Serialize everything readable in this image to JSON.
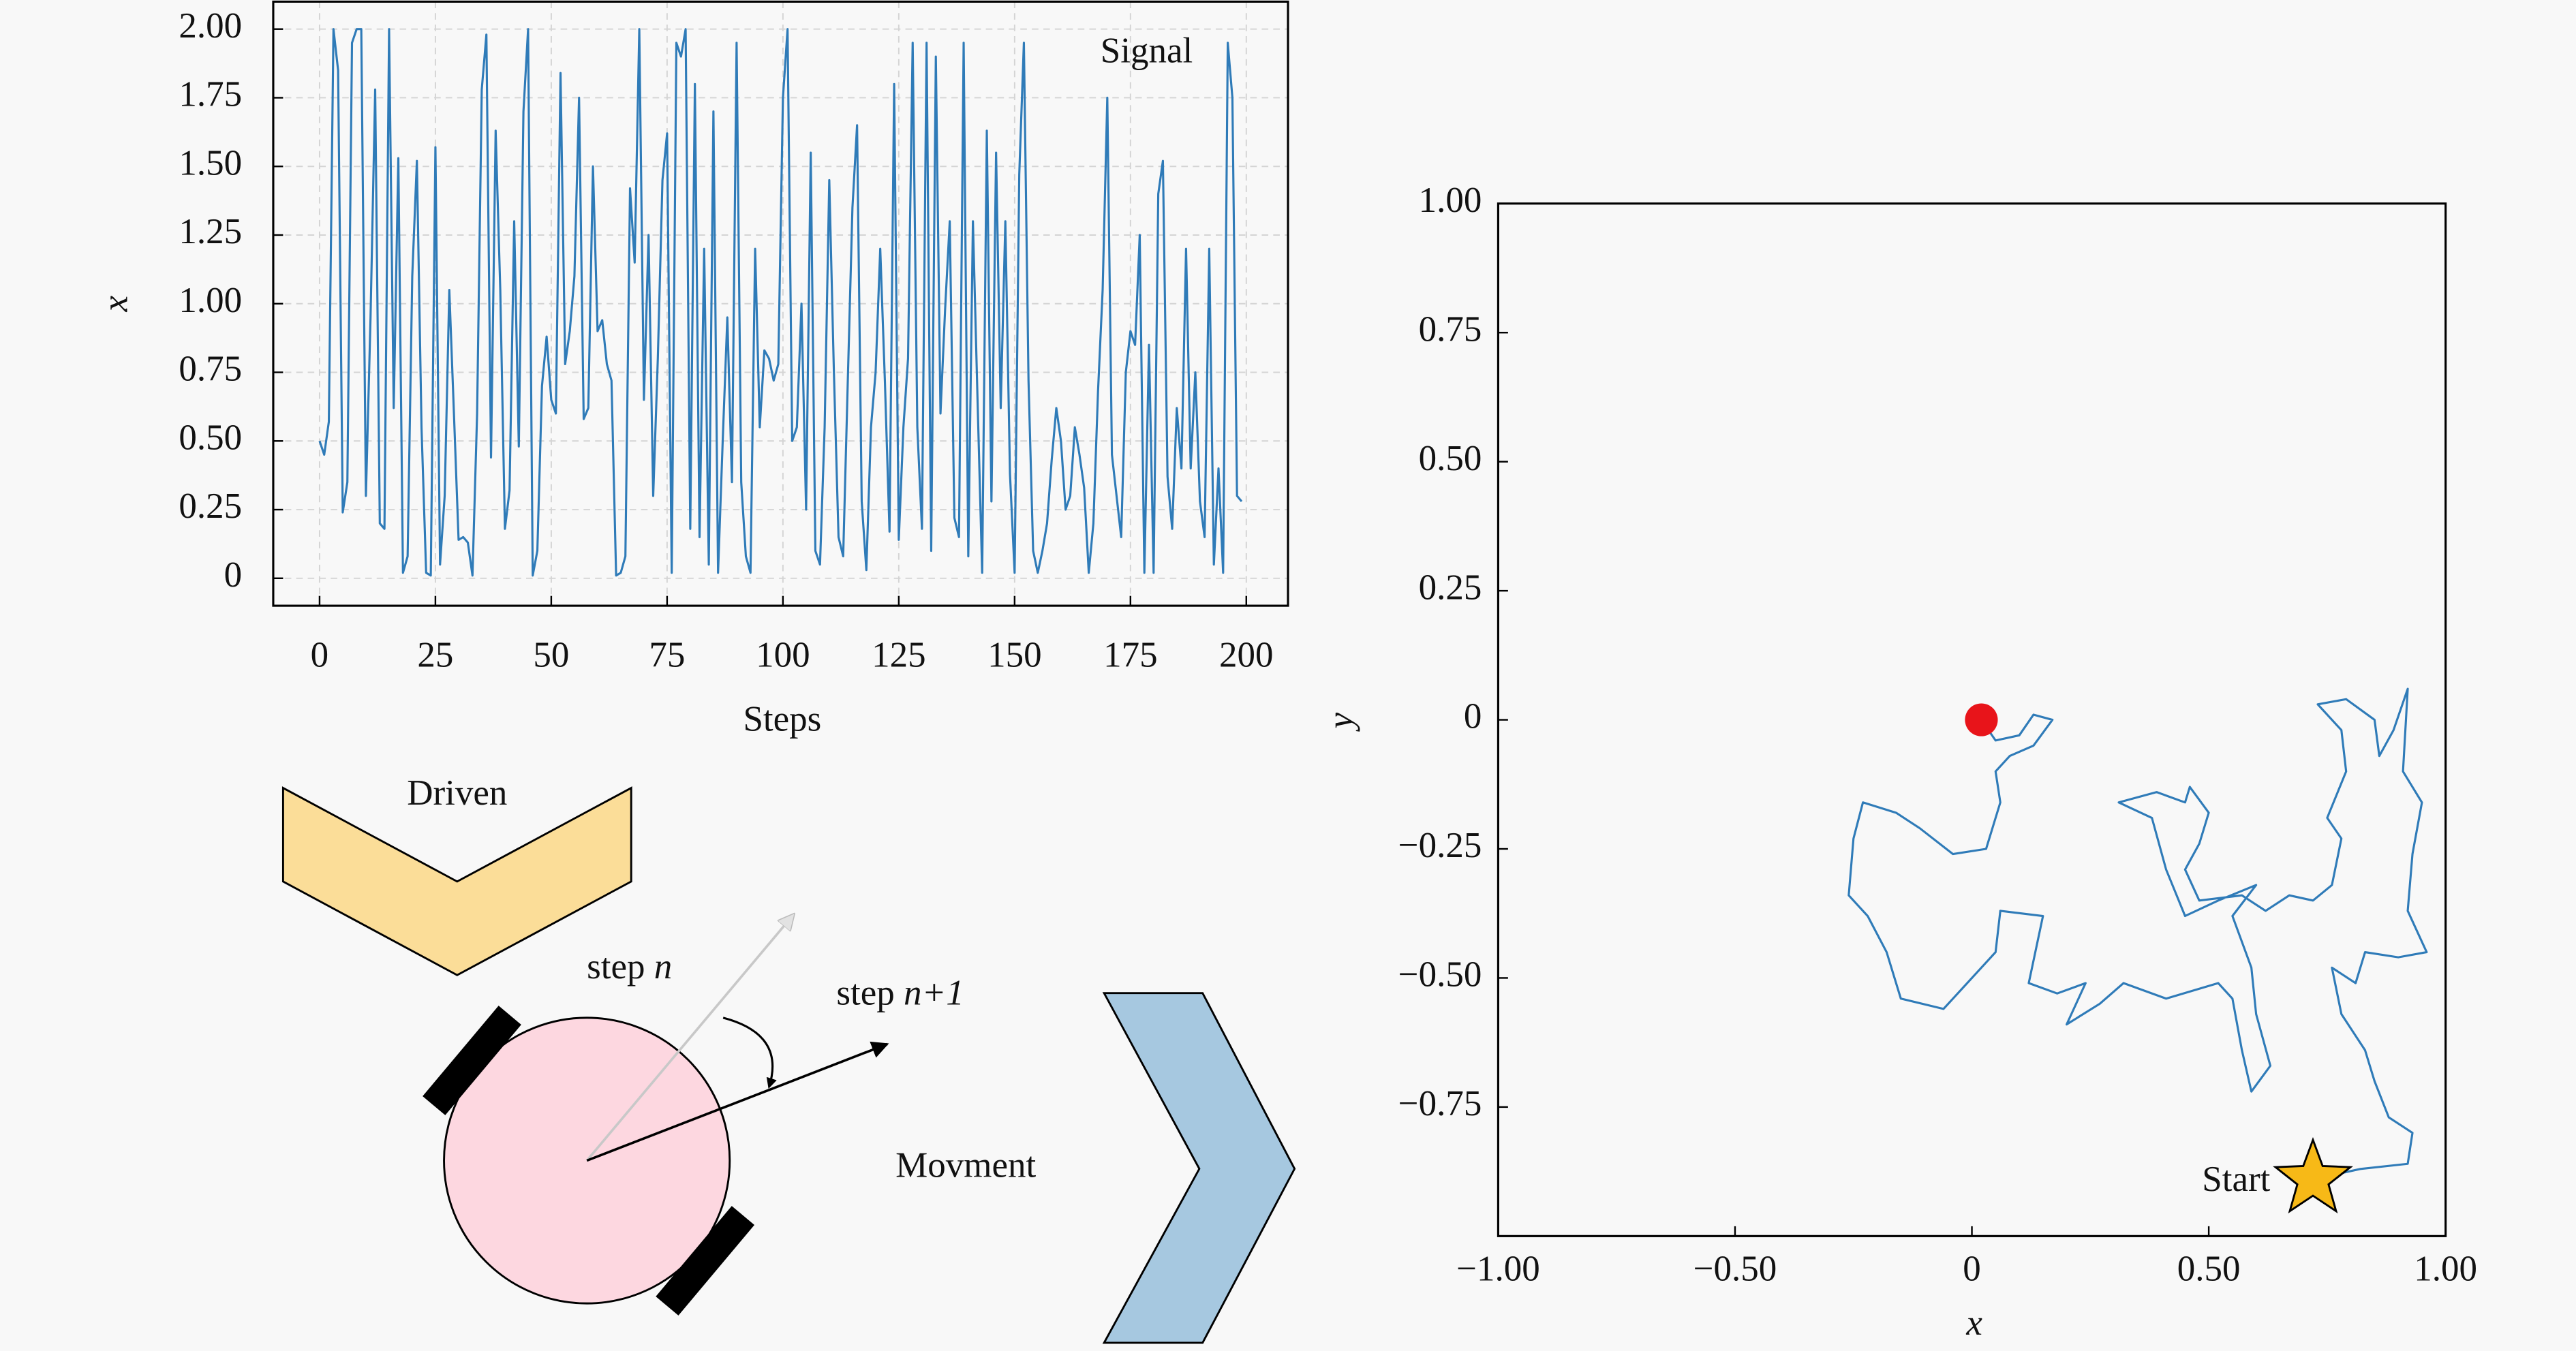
{
  "chart_data": [
    {
      "type": "line",
      "xlabel": "Steps",
      "ylabel": "x",
      "grid": true,
      "legend": "upper right",
      "xlim": [
        -10,
        209
      ],
      "ylim": [
        -0.1,
        2.1
      ],
      "xticks": [
        0,
        25,
        50,
        75,
        100,
        125,
        150,
        175,
        200
      ],
      "yticks": [
        0,
        0.25,
        {
          "value": 0.5,
          "label": "0.50"
        },
        0.75,
        {
          "value": 1,
          "label": "1.00"
        },
        1.25,
        {
          "value": 1.5,
          "label": "1.50"
        },
        1.75,
        {
          "value": 2,
          "label": "2.00"
        }
      ],
      "x": [
        0,
        1,
        2,
        3,
        4,
        5,
        6,
        7,
        8,
        9,
        10,
        11,
        12,
        13,
        14,
        15,
        16,
        17,
        18,
        19,
        20,
        21,
        22,
        23,
        24,
        25,
        26,
        27,
        28,
        29,
        30,
        31,
        32,
        33,
        34,
        35,
        36,
        37,
        38,
        39,
        40,
        41,
        42,
        43,
        44,
        45,
        46,
        47,
        48,
        49,
        50,
        51,
        52,
        53,
        54,
        55,
        56,
        57,
        58,
        59,
        60,
        61,
        62,
        63,
        64,
        65,
        66,
        67,
        68,
        69,
        70,
        71,
        72,
        73,
        74,
        75,
        76,
        77,
        78,
        79,
        80,
        81,
        82,
        83,
        84,
        85,
        86,
        87,
        88,
        89,
        90,
        91,
        92,
        93,
        94,
        95,
        96,
        97,
        98,
        99,
        100,
        101,
        102,
        103,
        104,
        105,
        106,
        107,
        108,
        109,
        110,
        111,
        112,
        113,
        114,
        115,
        116,
        117,
        118,
        119,
        120,
        121,
        122,
        123,
        124,
        125,
        126,
        127,
        128,
        129,
        130,
        131,
        132,
        133,
        134,
        135,
        136,
        137,
        138,
        139,
        140,
        141,
        142,
        143,
        144,
        145,
        146,
        147,
        148,
        149,
        150,
        151,
        152,
        153,
        154,
        155,
        156,
        157,
        158,
        159,
        160,
        161,
        162,
        163,
        164,
        165,
        166,
        167,
        168,
        169,
        170,
        171,
        172,
        173,
        174,
        175,
        176,
        177,
        178,
        179,
        180,
        181,
        182,
        183,
        184,
        185,
        186,
        187,
        188,
        189,
        190,
        191,
        192,
        193,
        194,
        195,
        196,
        197,
        198,
        199
      ],
      "series": [
        {
          "name": "Signal",
          "color": "#2f7bb8",
          "values": [
            0.5,
            0.45,
            0.57,
            2.0,
            1.85,
            0.24,
            0.35,
            1.95,
            2.0,
            2.0,
            0.3,
            0.95,
            1.78,
            0.2,
            0.18,
            2.0,
            0.62,
            1.53,
            0.02,
            0.08,
            1.1,
            1.52,
            0.55,
            0.02,
            0.01,
            1.57,
            0.05,
            0.3,
            1.05,
            0.6,
            0.14,
            0.15,
            0.13,
            0.01,
            0.6,
            1.78,
            1.98,
            0.44,
            1.63,
            1.05,
            0.18,
            0.32,
            1.3,
            0.48,
            1.7,
            2.0,
            0.01,
            0.1,
            0.7,
            0.88,
            0.65,
            0.6,
            1.84,
            0.78,
            0.9,
            1.1,
            1.75,
            0.58,
            0.62,
            1.5,
            0.9,
            0.94,
            0.78,
            0.72,
            0.01,
            0.02,
            0.08,
            1.42,
            1.15,
            2.0,
            0.65,
            1.25,
            0.3,
            0.8,
            1.45,
            1.62,
            0.02,
            1.95,
            1.9,
            2.0,
            0.18,
            1.8,
            0.15,
            1.2,
            0.05,
            1.7,
            0.02,
            0.5,
            0.95,
            0.35,
            1.95,
            0.35,
            0.08,
            0.02,
            1.2,
            0.55,
            0.83,
            0.8,
            0.72,
            0.78,
            1.75,
            2.0,
            0.5,
            0.55,
            1.0,
            0.25,
            1.55,
            0.1,
            0.05,
            0.55,
            1.45,
            0.75,
            0.15,
            0.08,
            0.72,
            1.35,
            1.65,
            0.28,
            0.03,
            0.55,
            0.75,
            1.2,
            0.72,
            0.17,
            1.8,
            0.14,
            0.55,
            0.8,
            1.95,
            0.55,
            0.18,
            1.95,
            0.1,
            1.9,
            0.6,
            0.98,
            1.3,
            0.22,
            0.15,
            1.95,
            0.08,
            1.3,
            0.65,
            0.02,
            1.63,
            0.28,
            1.55,
            0.62,
            1.3,
            0.38,
            0.02,
            1.47,
            1.95,
            0.72,
            0.1,
            0.02,
            0.1,
            0.2,
            0.43,
            0.62,
            0.5,
            0.25,
            0.3,
            0.55,
            0.45,
            0.33,
            0.02,
            0.2,
            0.68,
            1.05,
            1.75,
            0.45,
            0.3,
            0.15,
            0.75,
            0.9,
            0.85,
            1.25,
            0.02,
            0.85,
            0.02,
            1.4,
            1.52,
            0.37,
            0.18,
            0.62,
            0.4,
            1.2,
            0.4,
            0.75,
            0.28,
            0.15,
            1.2,
            0.05,
            0.4,
            0.02,
            1.95,
            1.75,
            0.3,
            0.28
          ]
        }
      ]
    },
    {
      "type": "line",
      "xlabel": "x",
      "ylabel": "y",
      "grid": false,
      "xlim": [
        -1,
        1
      ],
      "ylim": [
        -1,
        1
      ],
      "xticks": [
        {
          "value": -1,
          "label": "−1.00"
        },
        {
          "value": -0.5,
          "label": "−0.50"
        },
        0,
        {
          "value": 0.5,
          "label": "0.50"
        },
        {
          "value": 1,
          "label": "1.00"
        }
      ],
      "yticks": [
        {
          "value": -0.75,
          "label": "−0.75"
        },
        {
          "value": -0.5,
          "label": "−0.50"
        },
        {
          "value": -0.25,
          "label": "−0.25"
        },
        0,
        0.25,
        {
          "value": 0.5,
          "label": "0.50"
        },
        0.75,
        {
          "value": 1,
          "label": "1.00"
        }
      ],
      "annotation": "Start",
      "start_color": "#f7b917",
      "end_color": "#e8141a",
      "x": [
        0.72,
        0.82,
        0.92,
        0.93,
        0.88,
        0.85,
        0.83,
        0.78,
        0.76,
        0.81,
        0.83,
        0.9,
        0.96,
        0.92,
        0.93,
        0.95,
        0.91,
        0.92,
        0.89,
        0.86,
        0.85,
        0.79,
        0.73,
        0.78,
        0.79,
        0.75,
        0.78,
        0.76,
        0.72,
        0.67,
        0.62,
        0.57,
        0.48,
        0.45,
        0.48,
        0.5,
        0.46,
        0.45,
        0.39,
        0.31,
        0.38,
        0.41,
        0.45,
        0.52,
        0.6,
        0.55,
        0.59,
        0.6,
        0.63,
        0.59,
        0.57,
        0.55,
        0.52,
        0.41,
        0.32,
        0.27,
        0.2,
        0.24,
        0.18,
        0.12,
        0.15,
        0.06,
        0.05,
        -0.01,
        -0.06,
        -0.15,
        -0.18,
        -0.22,
        -0.26,
        -0.25,
        -0.23,
        -0.16,
        -0.11,
        -0.04,
        0.03,
        0.06,
        0.05,
        0.08,
        0.13,
        0.17,
        0.13,
        0.1,
        0.05,
        0.02
      ],
      "series": [
        {
          "color": "#2f7bb8",
          "values": [
            -0.89,
            -0.87,
            -0.86,
            -0.8,
            -0.77,
            -0.7,
            -0.64,
            -0.57,
            -0.48,
            -0.51,
            -0.45,
            -0.46,
            -0.45,
            -0.37,
            -0.26,
            -0.16,
            -0.1,
            0.06,
            -0.02,
            -0.07,
            0.0,
            0.04,
            0.03,
            -0.02,
            -0.1,
            -0.19,
            -0.23,
            -0.32,
            -0.35,
            -0.34,
            -0.37,
            -0.34,
            -0.35,
            -0.29,
            -0.24,
            -0.18,
            -0.13,
            -0.16,
            -0.14,
            -0.16,
            -0.19,
            -0.29,
            -0.38,
            -0.35,
            -0.32,
            -0.38,
            -0.48,
            -0.57,
            -0.67,
            -0.72,
            -0.64,
            -0.54,
            -0.51,
            -0.54,
            -0.51,
            -0.55,
            -0.59,
            -0.51,
            -0.53,
            -0.51,
            -0.38,
            -0.37,
            -0.45,
            -0.51,
            -0.56,
            -0.54,
            -0.45,
            -0.38,
            -0.34,
            -0.23,
            -0.16,
            -0.18,
            -0.21,
            -0.26,
            -0.25,
            -0.16,
            -0.1,
            -0.07,
            -0.05,
            0.0,
            0.01,
            -0.03,
            -0.04,
            0.0
          ]
        }
      ]
    }
  ],
  "diagram": {
    "driven": "Driven",
    "step_n": [
      "step",
      "n"
    ],
    "step_n1": [
      "step",
      "n+1"
    ],
    "movement": "Movment"
  }
}
